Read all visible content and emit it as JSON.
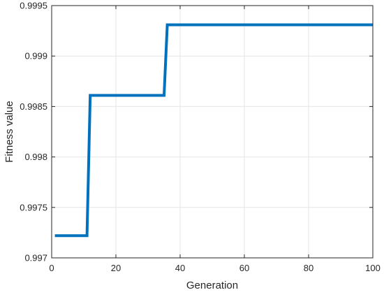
{
  "chart_data": {
    "type": "line",
    "title": "",
    "xlabel": "Generation",
    "ylabel": "Fitness value",
    "xlim": [
      0,
      100
    ],
    "ylim": [
      0.997,
      0.9995
    ],
    "x_ticks": [
      0,
      20,
      40,
      60,
      80,
      100
    ],
    "y_ticks": [
      0.997,
      0.9975,
      0.998,
      0.9985,
      0.999,
      0.9995
    ],
    "x_tick_labels": [
      "0",
      "20",
      "40",
      "60",
      "80",
      "100"
    ],
    "y_tick_labels": [
      "0.997",
      "0.9975",
      "0.998",
      "0.9985",
      "0.999",
      "0.9995"
    ],
    "grid": true,
    "line_color": "#0072BD",
    "series": [
      {
        "x": [
          1,
          11,
          11,
          12,
          12,
          35,
          35,
          36,
          36,
          100
        ],
        "values": [
          0.99722,
          0.99722,
          0.99722,
          0.99861,
          0.99861,
          0.99861,
          0.99861,
          0.99931,
          0.99931,
          0.99931
        ]
      }
    ]
  }
}
